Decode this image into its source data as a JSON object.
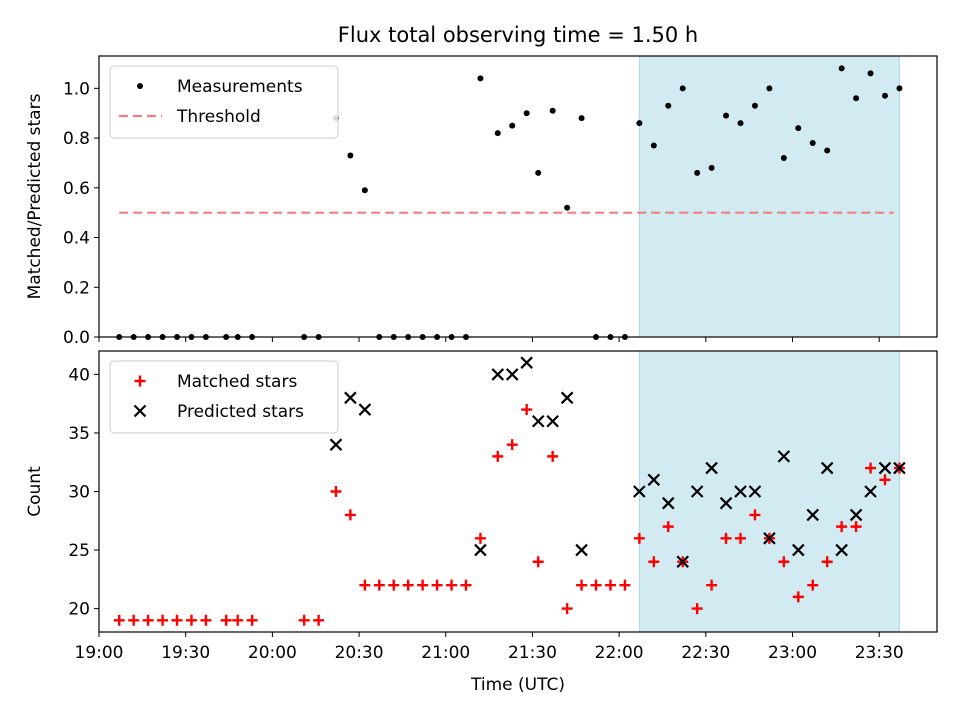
{
  "figure": {
    "title": "Flux total observing time = 1.50 h"
  },
  "chart_data": [
    {
      "type": "scatter",
      "id": "ratio",
      "title": "Flux total observing time = 1.50 h",
      "ylabel": "Matched/Predicted stars",
      "xlim": [
        "19:00",
        "23:50"
      ],
      "ylim": [
        0,
        1.13
      ],
      "yticks": [
        0.0,
        0.2,
        0.4,
        0.6,
        0.8,
        1.0
      ],
      "ytick_labels": [
        "0.0",
        "0.2",
        "0.4",
        "0.6",
        "0.8",
        "1.0"
      ],
      "legend_position": "upper-left",
      "highlight_span": {
        "from": "22:07",
        "to": "23:37",
        "color": "#add8e6"
      },
      "threshold": {
        "name": "Threshold",
        "value": 0.5,
        "from": "19:07",
        "to": "23:35",
        "color": "#f08080",
        "style": "dashed"
      },
      "series": [
        {
          "name": "Measurements",
          "marker": "dot",
          "color": "#000000",
          "points": [
            [
              "19:07",
              0
            ],
            [
              "19:12",
              0
            ],
            [
              "19:17",
              0
            ],
            [
              "19:22",
              0
            ],
            [
              "19:27",
              0
            ],
            [
              "19:32",
              0
            ],
            [
              "19:37",
              0
            ],
            [
              "19:44",
              0
            ],
            [
              "19:48",
              0
            ],
            [
              "19:53",
              0
            ],
            [
              "20:11",
              0
            ],
            [
              "20:16",
              0
            ],
            [
              "20:22",
              0.88
            ],
            [
              "20:27",
              0.73
            ],
            [
              "20:32",
              0.59
            ],
            [
              "20:37",
              0
            ],
            [
              "20:42",
              0
            ],
            [
              "20:47",
              0
            ],
            [
              "20:52",
              0
            ],
            [
              "20:57",
              0
            ],
            [
              "21:02",
              0
            ],
            [
              "21:07",
              0
            ],
            [
              "21:12",
              1.04
            ],
            [
              "21:18",
              0.82
            ],
            [
              "21:23",
              0.85
            ],
            [
              "21:28",
              0.9
            ],
            [
              "21:32",
              0.66
            ],
            [
              "21:37",
              0.91
            ],
            [
              "21:42",
              0.52
            ],
            [
              "21:47",
              0.88
            ],
            [
              "21:52",
              0
            ],
            [
              "21:57",
              0
            ],
            [
              "22:02",
              0
            ],
            [
              "22:07",
              0.86
            ],
            [
              "22:12",
              0.77
            ],
            [
              "22:17",
              0.93
            ],
            [
              "22:22",
              1.0
            ],
            [
              "22:27",
              0.66
            ],
            [
              "22:32",
              0.68
            ],
            [
              "22:37",
              0.89
            ],
            [
              "22:42",
              0.86
            ],
            [
              "22:47",
              0.93
            ],
            [
              "22:52",
              1.0
            ],
            [
              "22:57",
              0.72
            ],
            [
              "23:02",
              0.84
            ],
            [
              "23:07",
              0.78
            ],
            [
              "23:12",
              0.75
            ],
            [
              "23:17",
              1.08
            ],
            [
              "23:22",
              0.96
            ],
            [
              "23:27",
              1.06
            ],
            [
              "23:32",
              0.97
            ],
            [
              "23:37",
              1.0
            ]
          ]
        }
      ]
    },
    {
      "type": "scatter",
      "id": "counts",
      "xlabel": "Time (UTC)",
      "ylabel": "Count",
      "xlim": [
        "19:00",
        "23:50"
      ],
      "ylim": [
        18,
        42
      ],
      "xticks": [
        "19:00",
        "19:30",
        "20:00",
        "20:30",
        "21:00",
        "21:30",
        "22:00",
        "22:30",
        "23:00",
        "23:30"
      ],
      "yticks": [
        20,
        25,
        30,
        35,
        40
      ],
      "legend_position": "upper-left",
      "highlight_span": {
        "from": "22:07",
        "to": "23:37",
        "color": "#add8e6"
      },
      "series": [
        {
          "name": "Matched stars",
          "marker": "plus",
          "color": "#ff0000",
          "points": [
            [
              "19:07",
              19
            ],
            [
              "19:12",
              19
            ],
            [
              "19:17",
              19
            ],
            [
              "19:22",
              19
            ],
            [
              "19:27",
              19
            ],
            [
              "19:32",
              19
            ],
            [
              "19:37",
              19
            ],
            [
              "19:44",
              19
            ],
            [
              "19:48",
              19
            ],
            [
              "19:53",
              19
            ],
            [
              "20:11",
              19
            ],
            [
              "20:16",
              19
            ],
            [
              "20:22",
              30
            ],
            [
              "20:27",
              28
            ],
            [
              "20:32",
              22
            ],
            [
              "20:37",
              22
            ],
            [
              "20:42",
              22
            ],
            [
              "20:47",
              22
            ],
            [
              "20:52",
              22
            ],
            [
              "20:57",
              22
            ],
            [
              "21:02",
              22
            ],
            [
              "21:07",
              22
            ],
            [
              "21:12",
              26
            ],
            [
              "21:18",
              33
            ],
            [
              "21:23",
              34
            ],
            [
              "21:28",
              37
            ],
            [
              "21:32",
              24
            ],
            [
              "21:37",
              33
            ],
            [
              "21:42",
              20
            ],
            [
              "21:47",
              22
            ],
            [
              "21:52",
              22
            ],
            [
              "21:57",
              22
            ],
            [
              "22:02",
              22
            ],
            [
              "22:07",
              26
            ],
            [
              "22:12",
              24
            ],
            [
              "22:17",
              27
            ],
            [
              "22:22",
              24
            ],
            [
              "22:27",
              20
            ],
            [
              "22:32",
              22
            ],
            [
              "22:37",
              26
            ],
            [
              "22:42",
              26
            ],
            [
              "22:47",
              28
            ],
            [
              "22:52",
              26
            ],
            [
              "22:57",
              24
            ],
            [
              "23:02",
              21
            ],
            [
              "23:07",
              22
            ],
            [
              "23:12",
              24
            ],
            [
              "23:17",
              27
            ],
            [
              "23:22",
              27
            ],
            [
              "23:27",
              32
            ],
            [
              "23:32",
              31
            ],
            [
              "23:37",
              32
            ]
          ]
        },
        {
          "name": "Predicted stars",
          "marker": "x",
          "color": "#000000",
          "points": [
            [
              "20:22",
              34
            ],
            [
              "20:27",
              38
            ],
            [
              "20:32",
              37
            ],
            [
              "21:12",
              25
            ],
            [
              "21:18",
              40
            ],
            [
              "21:23",
              40
            ],
            [
              "21:28",
              41
            ],
            [
              "21:32",
              36
            ],
            [
              "21:37",
              36
            ],
            [
              "21:42",
              38
            ],
            [
              "21:47",
              25
            ],
            [
              "22:07",
              30
            ],
            [
              "22:12",
              31
            ],
            [
              "22:17",
              29
            ],
            [
              "22:22",
              24
            ],
            [
              "22:27",
              30
            ],
            [
              "22:32",
              32
            ],
            [
              "22:37",
              29
            ],
            [
              "22:42",
              30
            ],
            [
              "22:47",
              30
            ],
            [
              "22:52",
              26
            ],
            [
              "22:57",
              33
            ],
            [
              "23:02",
              25
            ],
            [
              "23:07",
              28
            ],
            [
              "23:12",
              32
            ],
            [
              "23:17",
              25
            ],
            [
              "23:22",
              28
            ],
            [
              "23:27",
              30
            ],
            [
              "23:32",
              32
            ],
            [
              "23:37",
              32
            ]
          ]
        }
      ]
    }
  ]
}
